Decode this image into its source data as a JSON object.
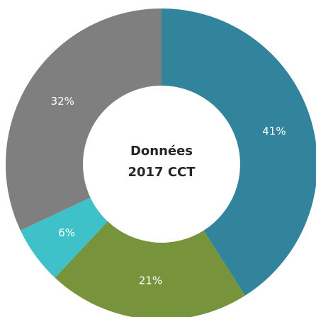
{
  "chart_data": {
    "type": "donut",
    "center_label": [
      "Données",
      "2017 CCT"
    ],
    "values": [
      41,
      21,
      6,
      32
    ],
    "value_labels": [
      "41%",
      "21%",
      "6%",
      "32%"
    ],
    "colors": [
      "#31849b",
      "#77933c",
      "#3fc1c9",
      "#7f7f7f"
    ]
  }
}
